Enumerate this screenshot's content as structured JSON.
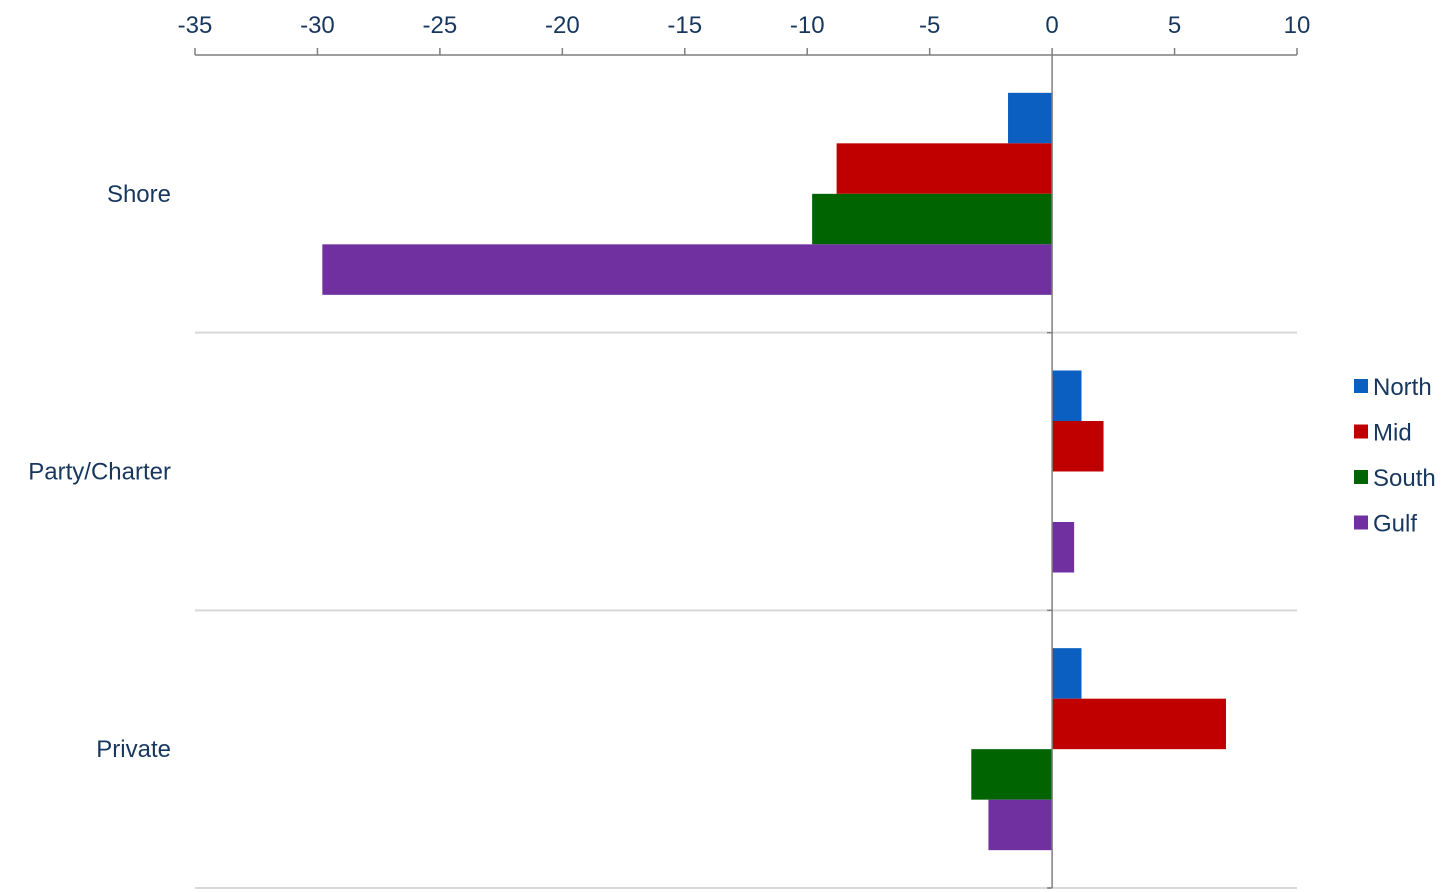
{
  "chart_data": {
    "type": "bar",
    "orientation": "horizontal",
    "categories": [
      "Shore",
      "Party/Charter",
      "Private"
    ],
    "series": [
      {
        "name": "North",
        "color": "#0a5fc0",
        "values": [
          -1.8,
          1.2,
          1.2
        ]
      },
      {
        "name": "Mid",
        "color": "#c00000",
        "values": [
          -8.8,
          2.1,
          7.1
        ]
      },
      {
        "name": "South",
        "color": "#006400",
        "values": [
          -9.8,
          0,
          -3.3
        ]
      },
      {
        "name": "Gulf",
        "color": "#7030a0",
        "values": [
          -29.8,
          0.9,
          -2.6
        ]
      }
    ],
    "xlim": [
      -35,
      10
    ],
    "xticks": [
      -35,
      -30,
      -25,
      -20,
      -15,
      -10,
      -5,
      0,
      5,
      10
    ],
    "xtick_labels": [
      "-35",
      "-30",
      "-25",
      "-20",
      "-15",
      "-10",
      "-5",
      "0",
      "5",
      "10"
    ],
    "x_axis_position": "top",
    "grid": "horizontal category separators",
    "legend_position": "right",
    "title": "",
    "xlabel": "",
    "ylabel": ""
  }
}
